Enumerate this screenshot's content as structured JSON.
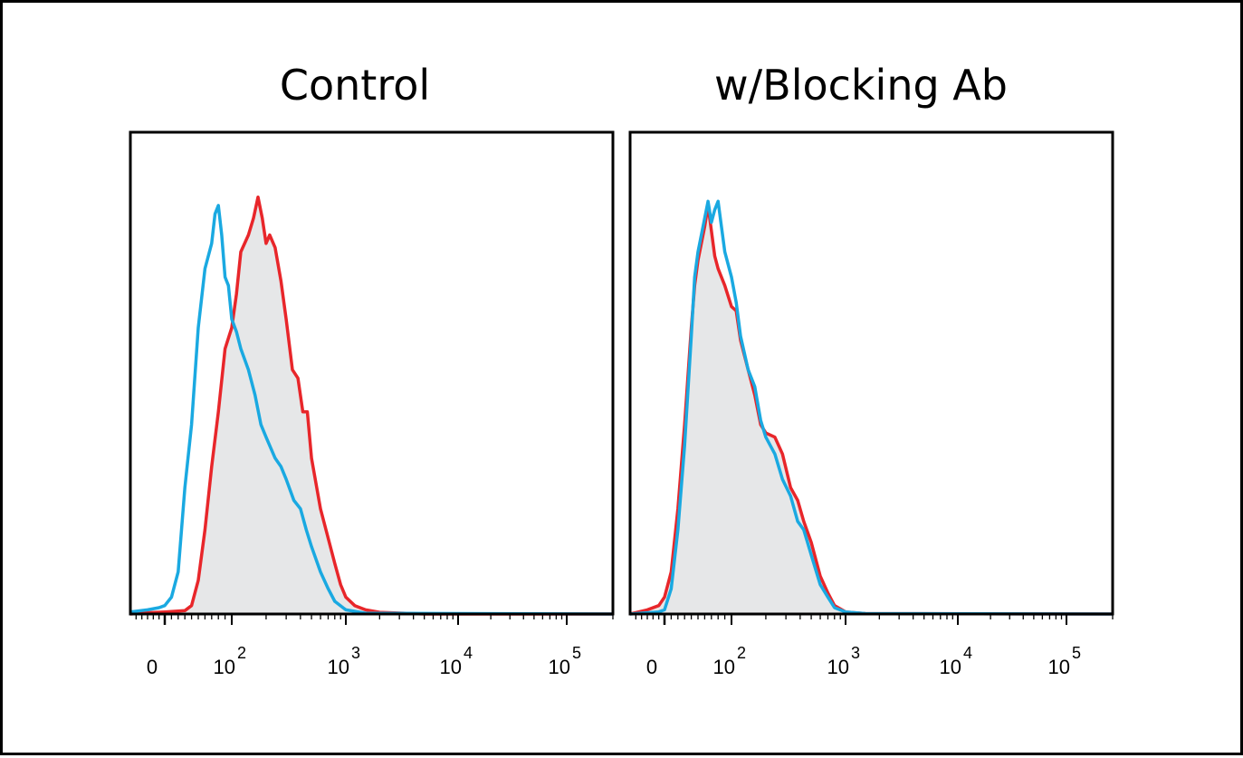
{
  "colors": {
    "fill": "#e6e7e8",
    "red": "#e8262a",
    "blue": "#1aa9e1",
    "axis": "#000000"
  },
  "chart_data": [
    {
      "type": "area",
      "title": "Control",
      "xlabel": "",
      "ylabel": "",
      "x_scale": "biexponential",
      "xlim": [
        -60,
        200000
      ],
      "ylim": [
        0,
        100
      ],
      "x_ticks": [
        {
          "value": 0,
          "base": "0",
          "exp": ""
        },
        {
          "value": 100,
          "base": "10",
          "exp": "2"
        },
        {
          "value": 1000,
          "base": "10",
          "exp": "3"
        },
        {
          "value": 10000,
          "base": "10",
          "exp": "4"
        },
        {
          "value": 100000,
          "base": "10",
          "exp": "5"
        }
      ],
      "series": [
        {
          "color": "red",
          "filled": true,
          "points": [
            [
              -60,
              0
            ],
            [
              -30,
              0.3
            ],
            [
              0,
              0.5
            ],
            [
              30,
              0.8
            ],
            [
              40,
              2
            ],
            [
              50,
              8
            ],
            [
              60,
              20
            ],
            [
              70,
              35
            ],
            [
              80,
              48
            ],
            [
              90,
              63
            ],
            [
              100,
              68
            ],
            [
              110,
              76
            ],
            [
              120,
              86
            ],
            [
              140,
              90
            ],
            [
              155,
              94
            ],
            [
              170,
              99
            ],
            [
              185,
              94
            ],
            [
              200,
              88
            ],
            [
              215,
              90
            ],
            [
              240,
              87
            ],
            [
              270,
              79
            ],
            [
              300,
              70
            ],
            [
              340,
              58
            ],
            [
              380,
              56
            ],
            [
              420,
              48
            ],
            [
              460,
              48
            ],
            [
              500,
              37
            ],
            [
              600,
              25
            ],
            [
              700,
              18
            ],
            [
              800,
              12
            ],
            [
              900,
              7
            ],
            [
              1000,
              4
            ],
            [
              1200,
              2
            ],
            [
              1500,
              1
            ],
            [
              2000,
              0.4
            ],
            [
              5000,
              0
            ],
            [
              200000,
              0
            ]
          ]
        },
        {
          "color": "blue",
          "filled": false,
          "points": [
            [
              -60,
              0.5
            ],
            [
              -30,
              1
            ],
            [
              -10,
              1.5
            ],
            [
              0,
              2
            ],
            [
              10,
              4
            ],
            [
              20,
              10
            ],
            [
              25,
              20
            ],
            [
              30,
              30
            ],
            [
              40,
              45
            ],
            [
              50,
              68
            ],
            [
              60,
              82
            ],
            [
              70,
              88
            ],
            [
              75,
              95
            ],
            [
              80,
              97
            ],
            [
              85,
              90
            ],
            [
              90,
              80
            ],
            [
              95,
              78
            ],
            [
              100,
              70
            ],
            [
              110,
              67
            ],
            [
              120,
              63
            ],
            [
              140,
              58
            ],
            [
              160,
              52
            ],
            [
              180,
              45
            ],
            [
              200,
              42
            ],
            [
              240,
              37
            ],
            [
              270,
              35
            ],
            [
              300,
              32
            ],
            [
              350,
              27
            ],
            [
              400,
              25
            ],
            [
              450,
              20
            ],
            [
              500,
              16
            ],
            [
              600,
              10
            ],
            [
              700,
              6
            ],
            [
              800,
              3
            ],
            [
              1000,
              1
            ],
            [
              1500,
              0.2
            ],
            [
              200000,
              0
            ]
          ]
        }
      ]
    },
    {
      "type": "area",
      "title": "w/Blocking Ab",
      "xlabel": "",
      "ylabel": "",
      "x_scale": "biexponential",
      "xlim": [
        -60,
        200000
      ],
      "ylim": [
        0,
        100
      ],
      "x_ticks": [
        {
          "value": 0,
          "base": "0",
          "exp": ""
        },
        {
          "value": 100,
          "base": "10",
          "exp": "2"
        },
        {
          "value": 1000,
          "base": "10",
          "exp": "3"
        },
        {
          "value": 10000,
          "base": "10",
          "exp": "4"
        },
        {
          "value": 100000,
          "base": "10",
          "exp": "5"
        }
      ],
      "series": [
        {
          "color": "red",
          "filled": true,
          "points": [
            [
              -60,
              0
            ],
            [
              -30,
              1
            ],
            [
              -10,
              2
            ],
            [
              0,
              4
            ],
            [
              10,
              10
            ],
            [
              20,
              25
            ],
            [
              30,
              45
            ],
            [
              40,
              68
            ],
            [
              45,
              78
            ],
            [
              50,
              84
            ],
            [
              55,
              88
            ],
            [
              60,
              92
            ],
            [
              65,
              97
            ],
            [
              70,
              91
            ],
            [
              75,
              85
            ],
            [
              80,
              82
            ],
            [
              90,
              78
            ],
            [
              100,
              73
            ],
            [
              110,
              72
            ],
            [
              120,
              65
            ],
            [
              140,
              58
            ],
            [
              160,
              52
            ],
            [
              180,
              45
            ],
            [
              200,
              43
            ],
            [
              240,
              42
            ],
            [
              280,
              38
            ],
            [
              330,
              30
            ],
            [
              380,
              27
            ],
            [
              430,
              22
            ],
            [
              500,
              17
            ],
            [
              600,
              9
            ],
            [
              700,
              5
            ],
            [
              800,
              2
            ],
            [
              1000,
              0.5
            ],
            [
              1500,
              0.1
            ],
            [
              200000,
              0
            ]
          ]
        },
        {
          "color": "blue",
          "filled": false,
          "points": [
            [
              -60,
              0
            ],
            [
              -30,
              0.3
            ],
            [
              -10,
              0.5
            ],
            [
              0,
              1
            ],
            [
              10,
              6
            ],
            [
              20,
              20
            ],
            [
              30,
              40
            ],
            [
              40,
              66
            ],
            [
              45,
              80
            ],
            [
              50,
              86
            ],
            [
              55,
              90
            ],
            [
              60,
              94
            ],
            [
              65,
              98
            ],
            [
              70,
              93
            ],
            [
              75,
              96
            ],
            [
              80,
              98
            ],
            [
              85,
              92
            ],
            [
              90,
              86
            ],
            [
              100,
              80
            ],
            [
              110,
              74
            ],
            [
              120,
              66
            ],
            [
              140,
              58
            ],
            [
              160,
              54
            ],
            [
              180,
              46
            ],
            [
              200,
              42
            ],
            [
              240,
              38
            ],
            [
              280,
              32
            ],
            [
              330,
              28
            ],
            [
              380,
              22
            ],
            [
              430,
              20
            ],
            [
              500,
              14
            ],
            [
              600,
              7
            ],
            [
              700,
              4
            ],
            [
              800,
              1.5
            ],
            [
              1000,
              0.5
            ],
            [
              1500,
              0.1
            ],
            [
              200000,
              0
            ]
          ]
        }
      ]
    }
  ]
}
